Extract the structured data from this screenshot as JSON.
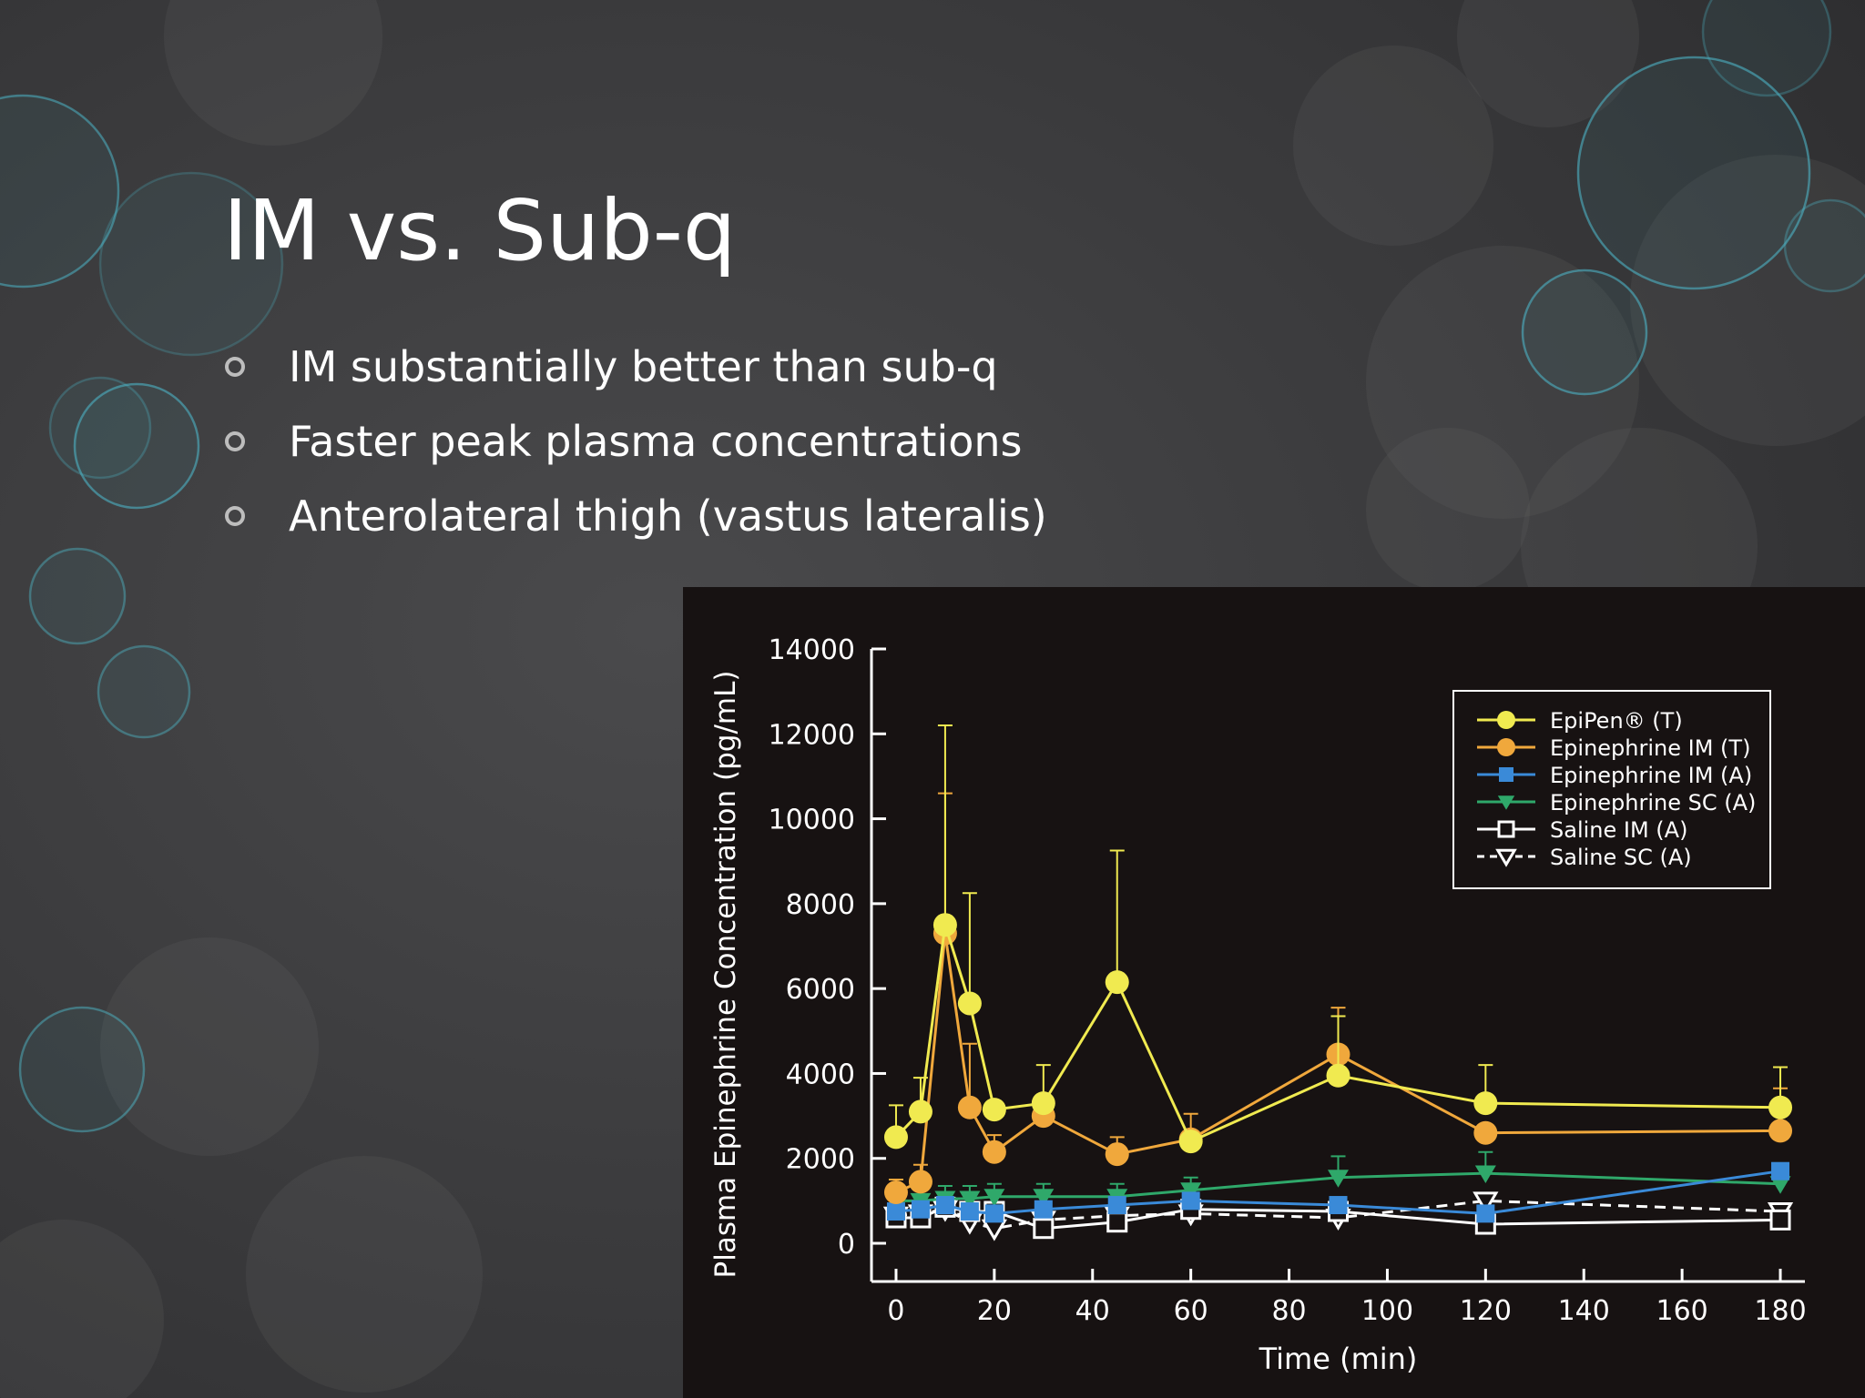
{
  "slide": {
    "title": "IM vs. Sub-q",
    "bullets": [
      "IM substantially better than sub-q",
      "Faster peak plasma concentrations",
      "Anterolateral thigh (vastus lateralis)"
    ]
  },
  "colors": {
    "background": "#3c3c3e",
    "bubble": "#4db3c4",
    "chart_background": "#171212"
  },
  "chart_data": {
    "type": "line",
    "xlabel": "Time (min)",
    "ylabel": "Plasma Epinephrine Concentration (pg/mL)",
    "xlim": [
      -5,
      185
    ],
    "ylim": [
      -900,
      14000
    ],
    "x_ticks": [
      0,
      20,
      40,
      60,
      80,
      100,
      120,
      140,
      160,
      180
    ],
    "y_ticks": [
      0,
      2000,
      4000,
      6000,
      8000,
      10000,
      12000,
      14000
    ],
    "legend_position": "top-right",
    "series": [
      {
        "name": "EpiPen® (T)",
        "color": "#f0ea50",
        "marker": "circle",
        "dash": "solid",
        "x": [
          0,
          5,
          10,
          15,
          20,
          30,
          45,
          60,
          90,
          120,
          180
        ],
        "y": [
          2500,
          3100,
          7500,
          5650,
          3150,
          3300,
          6150,
          2400,
          3950,
          3300,
          3200
        ],
        "error": [
          750,
          800,
          4700,
          2600,
          0,
          900,
          3100,
          0,
          1400,
          900,
          950
        ]
      },
      {
        "name": "Epinephrine IM (T)",
        "color": "#f0a83c",
        "marker": "circle",
        "dash": "solid",
        "x": [
          0,
          5,
          10,
          15,
          20,
          30,
          45,
          60,
          90,
          120,
          180
        ],
        "y": [
          1200,
          1450,
          7300,
          3200,
          2150,
          3000,
          2100,
          2450,
          4450,
          2600,
          2650
        ],
        "error": [
          300,
          400,
          3300,
          1500,
          400,
          0,
          400,
          600,
          1100,
          0,
          1000
        ]
      },
      {
        "name": "Epinephrine IM (A)",
        "color": "#3a8ad8",
        "marker": "square",
        "dash": "solid",
        "x": [
          0,
          5,
          10,
          15,
          20,
          30,
          45,
          60,
          90,
          120,
          180
        ],
        "y": [
          750,
          800,
          900,
          750,
          700,
          800,
          900,
          1000,
          900,
          700,
          1700
        ],
        "error": [
          0,
          0,
          0,
          0,
          0,
          0,
          0,
          0,
          0,
          0,
          0
        ]
      },
      {
        "name": "Epinephrine SC (A)",
        "color": "#2fa86a",
        "marker": "triangle-down",
        "dash": "solid",
        "x": [
          0,
          5,
          10,
          15,
          20,
          30,
          45,
          60,
          90,
          120,
          180
        ],
        "y": [
          1000,
          1000,
          1050,
          1050,
          1100,
          1100,
          1100,
          1250,
          1550,
          1650,
          1400
        ],
        "error": [
          0,
          300,
          300,
          300,
          300,
          300,
          300,
          300,
          500,
          500,
          0
        ]
      },
      {
        "name": "Saline IM (A)",
        "color": "#ffffff",
        "marker": "square-open",
        "dash": "solid",
        "x": [
          0,
          5,
          10,
          15,
          20,
          30,
          45,
          60,
          90,
          120,
          180
        ],
        "y": [
          600,
          600,
          850,
          750,
          750,
          350,
          500,
          800,
          750,
          450,
          550
        ],
        "error": [
          0,
          0,
          0,
          0,
          0,
          0,
          0,
          0,
          0,
          0,
          0
        ]
      },
      {
        "name": "Saline SC (A)",
        "color": "#ffffff",
        "marker": "triangle-open",
        "dash": "dashed",
        "x": [
          0,
          5,
          10,
          15,
          20,
          30,
          45,
          60,
          90,
          120,
          180
        ],
        "y": [
          650,
          700,
          800,
          500,
          350,
          550,
          650,
          700,
          600,
          1000,
          750
        ],
        "error": [
          0,
          0,
          0,
          0,
          0,
          0,
          0,
          0,
          0,
          0,
          0
        ]
      }
    ]
  }
}
